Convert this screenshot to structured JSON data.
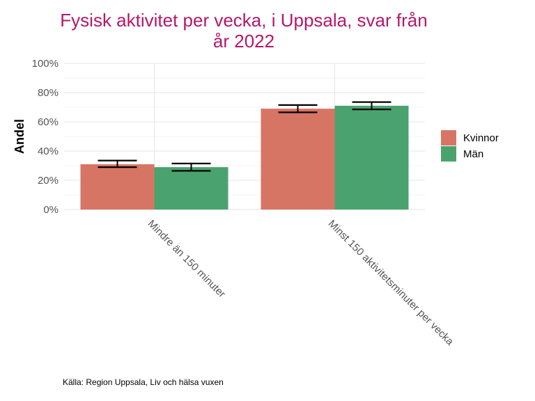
{
  "chart_data": {
    "type": "bar",
    "title_lines": [
      "Fysisk aktivitet per vecka, i Uppsala, svar från",
      "år 2022"
    ],
    "xlabel": "",
    "ylabel": "Andel",
    "categories": [
      "Mindre än 150 minuter",
      "Minst 150 aktivitetsminuter per vecka"
    ],
    "series": [
      {
        "name": "Kvinnor",
        "color": "#d77565",
        "values": [
          31,
          69
        ],
        "ci_low": [
          29,
          66.5
        ],
        "ci_high": [
          33.5,
          71.5
        ]
      },
      {
        "name": "Män",
        "color": "#4aa36f",
        "values": [
          29,
          71
        ],
        "ci_low": [
          26.5,
          68.5
        ],
        "ci_high": [
          31.5,
          73.5
        ]
      }
    ],
    "ylim": [
      0,
      100
    ],
    "yticks": [
      0,
      20,
      40,
      60,
      80,
      100
    ],
    "ytick_labels": [
      "0%",
      "20%",
      "40%",
      "60%",
      "80%",
      "100%"
    ],
    "legend_position": "right",
    "grid": true,
    "caption": "Källa: Region Uppsala, Liv och hälsa vuxen"
  }
}
